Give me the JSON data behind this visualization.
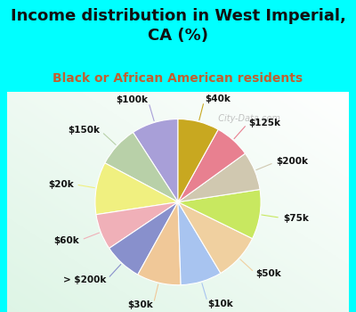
{
  "title": "Income distribution in West Imperial,\nCA (%)",
  "subtitle": "Black or African American residents",
  "labels": [
    "$100k",
    "$150k",
    "$20k",
    "$60k",
    "> $200k",
    "$30k",
    "$10k",
    "$50k",
    "$75k",
    "$200k",
    "$125k",
    "$40k"
  ],
  "sizes": [
    8.5,
    7.5,
    9.5,
    6.5,
    7.0,
    8.0,
    7.5,
    8.5,
    9.0,
    7.0,
    6.5,
    7.5
  ],
  "colors": [
    "#a89fd8",
    "#b8d0a8",
    "#f0f080",
    "#f0b0b8",
    "#8890cc",
    "#f0c898",
    "#a8c4f0",
    "#f0d0a0",
    "#c8e860",
    "#d0c8b0",
    "#e88090",
    "#c8a820"
  ],
  "bg_cyan": "#00ffff",
  "bg_chart_color1": "#e0f5f0",
  "bg_chart_color2": "#ffffff",
  "title_fontsize": 13,
  "subtitle_fontsize": 10,
  "subtitle_color": "#c06030",
  "watermark": "  City-Data.com",
  "watermark_color": "#aaaaaa",
  "label_fontsize": 7.5,
  "startangle": 90
}
